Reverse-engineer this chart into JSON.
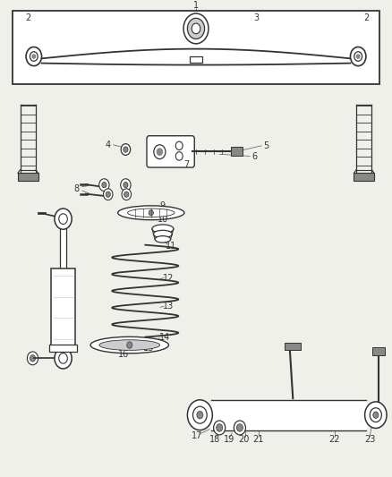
{
  "bg_color": "#f0f0eb",
  "line_color": "#333333",
  "gray_color": "#888888",
  "light_gray": "#cccccc",
  "white": "#ffffff"
}
